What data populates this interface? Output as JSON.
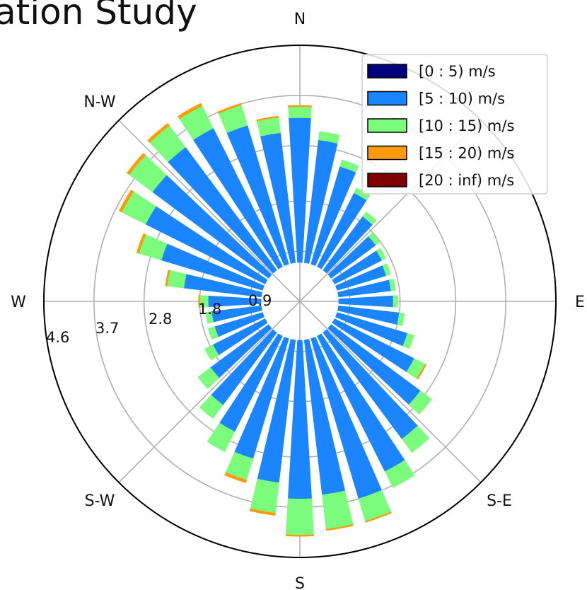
{
  "title": "ation Study",
  "chart_data": {
    "type": "windrose",
    "directions": [
      "N",
      "N-W",
      "W",
      "S-W",
      "S",
      "S-E",
      "E"
    ],
    "radial_ticks": [
      "0.9",
      "1.8",
      "2.8",
      "3.7",
      "4.6"
    ],
    "radial_max": 4.6,
    "hole_radius": 0.7,
    "grid": true,
    "legend_position": "top-right",
    "legend": [
      {
        "label": "[0 : 5) m/s",
        "color": "#00007f"
      },
      {
        "label": "[5 : 10) m/s",
        "color": "#1a85ff"
      },
      {
        "label": "[10 : 15) m/s",
        "color": "#7cfc7c"
      },
      {
        "label": "[15 : 20) m/s",
        "color": "#ff9a0a"
      },
      {
        "label": "[20 : inf) m/s",
        "color": "#7f0000"
      }
    ],
    "bars": [
      {
        "dir": 0,
        "values": [
          0.0,
          2.6,
          0.2,
          0.02,
          0
        ]
      },
      {
        "dir": 10,
        "values": [
          0.0,
          2.22,
          0.15,
          0,
          0
        ]
      },
      {
        "dir": 20,
        "values": [
          0.0,
          1.83,
          0.12,
          0,
          0
        ]
      },
      {
        "dir": 30,
        "values": [
          0.0,
          1.48,
          0.1,
          0,
          0
        ]
      },
      {
        "dir": 40,
        "values": [
          0.0,
          1.2,
          0.1,
          0,
          0
        ]
      },
      {
        "dir": 50,
        "values": [
          0.0,
          1.0,
          0.09,
          0,
          0
        ]
      },
      {
        "dir": 60,
        "values": [
          0.0,
          0.95,
          0.08,
          0,
          0
        ]
      },
      {
        "dir": 70,
        "values": [
          0.0,
          0.92,
          0.08,
          0,
          0
        ]
      },
      {
        "dir": 80,
        "values": [
          0.0,
          0.95,
          0.08,
          0,
          0
        ]
      },
      {
        "dir": 90,
        "values": [
          0.0,
          0.98,
          0.08,
          0,
          0
        ]
      },
      {
        "dir": 100,
        "values": [
          0.0,
          1.1,
          0.09,
          0,
          0
        ]
      },
      {
        "dir": 110,
        "values": [
          0.0,
          1.32,
          0.12,
          0,
          0
        ]
      },
      {
        "dir": 120,
        "values": [
          0.0,
          1.6,
          0.22,
          0.02,
          0
        ]
      },
      {
        "dir": 130,
        "values": [
          0.0,
          2.0,
          0.25,
          0,
          0
        ]
      },
      {
        "dir": 140,
        "values": [
          0.0,
          2.38,
          0.3,
          0,
          0
        ]
      },
      {
        "dir": 150,
        "values": [
          0.0,
          2.72,
          0.32,
          0,
          0
        ]
      },
      {
        "dir": 160,
        "values": [
          0.0,
          3.0,
          0.42,
          0.02,
          0
        ]
      },
      {
        "dir": 170,
        "values": [
          0.0,
          2.8,
          0.62,
          0.02,
          0
        ]
      },
      {
        "dir": 180,
        "values": [
          0.0,
          2.85,
          0.65,
          0.02,
          0
        ]
      },
      {
        "dir": 190,
        "values": [
          0.0,
          2.58,
          0.55,
          0.04,
          0
        ]
      },
      {
        "dir": 200,
        "values": [
          0.0,
          2.25,
          0.4,
          0.05,
          0
        ]
      },
      {
        "dir": 210,
        "values": [
          0.0,
          1.92,
          0.4,
          0,
          0
        ]
      },
      {
        "dir": 220,
        "values": [
          0.0,
          1.62,
          0.3,
          0,
          0
        ]
      },
      {
        "dir": 230,
        "values": [
          0.0,
          1.3,
          0.28,
          0,
          0
        ]
      },
      {
        "dir": 240,
        "values": [
          0.0,
          1.05,
          0.16,
          0,
          0
        ]
      },
      {
        "dir": 250,
        "values": [
          0.0,
          0.9,
          0.12,
          0,
          0
        ]
      },
      {
        "dir": 260,
        "values": [
          0.0,
          0.9,
          0.1,
          0,
          0
        ]
      },
      {
        "dir": 270,
        "values": [
          0.0,
          0.95,
          0.15,
          0.02,
          0
        ]
      },
      {
        "dir": 280,
        "values": [
          0.0,
          1.4,
          0.3,
          0.03,
          0
        ]
      },
      {
        "dir": 290,
        "values": [
          0.0,
          1.9,
          0.42,
          0.04,
          0
        ]
      },
      {
        "dir": 300,
        "values": [
          0.0,
          2.4,
          0.48,
          0.05,
          0
        ]
      },
      {
        "dir": 310,
        "values": [
          0.0,
          2.6,
          0.52,
          0.05,
          0
        ]
      },
      {
        "dir": 320,
        "values": [
          0.0,
          2.75,
          0.48,
          0.05,
          0
        ]
      },
      {
        "dir": 330,
        "values": [
          0.0,
          2.78,
          0.45,
          0.05,
          0
        ]
      },
      {
        "dir": 340,
        "values": [
          0.0,
          2.6,
          0.38,
          0.03,
          0
        ]
      },
      {
        "dir": 350,
        "values": [
          0.0,
          2.35,
          0.28,
          0.02,
          0
        ]
      }
    ]
  }
}
